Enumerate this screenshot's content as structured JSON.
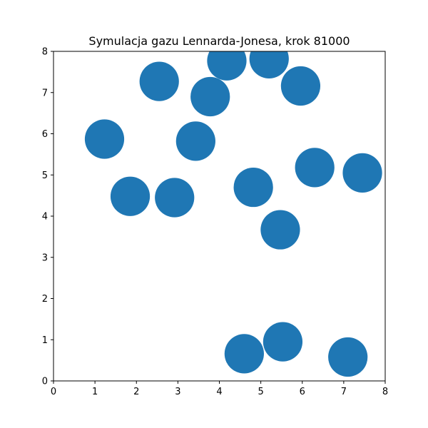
{
  "chart_data": {
    "type": "scatter",
    "title": "Symulacja gazu Lennarda-Jonesa, krok 81000",
    "xlabel": "",
    "ylabel": "",
    "xlim": [
      0,
      8
    ],
    "ylim": [
      0,
      8
    ],
    "grid": false,
    "x_ticks": [
      "0",
      "1",
      "2",
      "3",
      "4",
      "5",
      "6",
      "7",
      "8"
    ],
    "y_ticks": [
      "0",
      "1",
      "2",
      "3",
      "4",
      "5",
      "6",
      "7",
      "8"
    ],
    "particle_diameter": 0.95,
    "marker_color": "#1f77b4",
    "points": [
      {
        "x": 1.23,
        "y": 5.87
      },
      {
        "x": 1.85,
        "y": 4.48
      },
      {
        "x": 2.92,
        "y": 4.45
      },
      {
        "x": 2.55,
        "y": 7.27
      },
      {
        "x": 3.43,
        "y": 5.82
      },
      {
        "x": 3.78,
        "y": 6.9
      },
      {
        "x": 4.18,
        "y": 7.77
      },
      {
        "x": 5.2,
        "y": 7.82
      },
      {
        "x": 5.96,
        "y": 7.16
      },
      {
        "x": 4.82,
        "y": 4.7
      },
      {
        "x": 6.3,
        "y": 5.18
      },
      {
        "x": 7.45,
        "y": 5.05
      },
      {
        "x": 5.47,
        "y": 3.67
      },
      {
        "x": 4.6,
        "y": 0.66
      },
      {
        "x": 5.53,
        "y": 0.95
      },
      {
        "x": 7.1,
        "y": 0.58
      }
    ]
  }
}
